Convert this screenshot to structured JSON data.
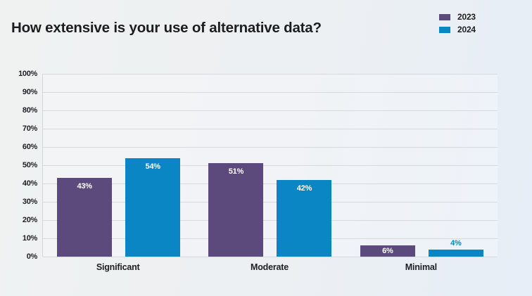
{
  "title": "How extensive is your use of alternative data?",
  "chart_data": {
    "type": "bar",
    "title": "How extensive is your use of alternative data?",
    "categories": [
      "Significant",
      "Moderate",
      "Minimal"
    ],
    "series": [
      {
        "name": "2023",
        "color": "#5c4a7d",
        "values": [
          43,
          51,
          6
        ]
      },
      {
        "name": "2024",
        "color": "#0a86c4",
        "values": [
          54,
          42,
          4
        ]
      }
    ],
    "value_label_suffix": "%",
    "xlabel": "",
    "ylabel": "",
    "ylim": [
      0,
      100
    ],
    "ytick_labels": [
      "0%",
      "10%",
      "20%",
      "30%",
      "40%",
      "50%",
      "60%",
      "70%",
      "80%",
      "90%",
      "100%"
    ],
    "grid": true,
    "legend_position": "top-right",
    "value_label_colors": {
      "inside": "#ffffff",
      "outside": "series-color"
    }
  }
}
